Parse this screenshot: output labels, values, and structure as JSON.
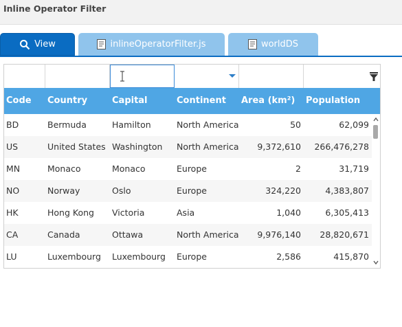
{
  "window": {
    "title": "Inline Operator Filter"
  },
  "tabs": [
    {
      "label": "View",
      "icon": "search-icon",
      "active": true
    },
    {
      "label": "inlineOperatorFilter.js",
      "icon": "document-icon",
      "active": false
    },
    {
      "label": "worldDS",
      "icon": "document-icon",
      "active": false
    }
  ],
  "colors": {
    "header": "#4fa6e4",
    "active_tab": "#0a6cc2",
    "inactive_tab": "#90c4ec"
  },
  "grid": {
    "columns": [
      "Code",
      "Country",
      "Capital",
      "Continent",
      "Area (km²)",
      "Population"
    ],
    "rows": [
      [
        "BD",
        "Bermuda",
        "Hamilton",
        "North America",
        "50",
        "62,099"
      ],
      [
        "US",
        "United States",
        "Washington",
        "North America",
        "9,372,610",
        "266,476,278"
      ],
      [
        "MN",
        "Monaco",
        "Monaco",
        "Europe",
        "2",
        "31,719"
      ],
      [
        "NO",
        "Norway",
        "Oslo",
        "Europe",
        "324,220",
        "4,383,807"
      ],
      [
        "HK",
        "Hong Kong",
        "Victoria",
        "Asia",
        "1,040",
        "6,305,413"
      ],
      [
        "CA",
        "Canada",
        "Ottawa",
        "North America",
        "9,976,140",
        "28,820,671"
      ],
      [
        "LU",
        "Luxembourg",
        "Luxembourg",
        "Europe",
        "2,586",
        "415,870"
      ]
    ]
  }
}
